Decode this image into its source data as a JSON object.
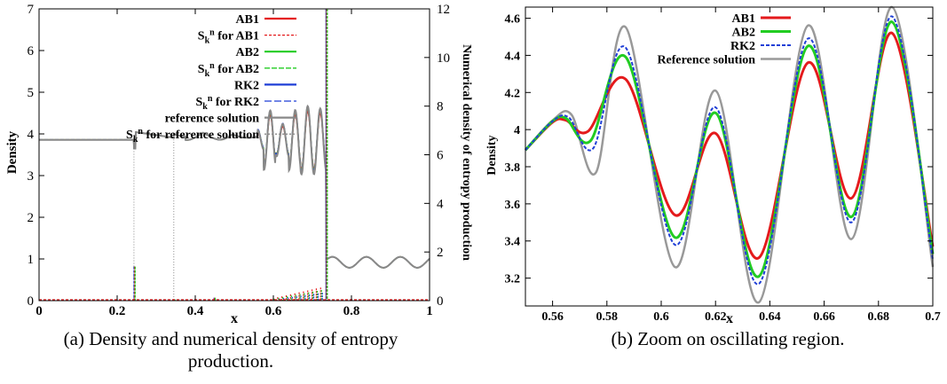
{
  "captions": {
    "left_line1": "(a) Density and numerical density of entropy",
    "left_line2": "production.",
    "right": "(b) Zoom on oscillating region."
  },
  "chart_data": [
    {
      "type": "line",
      "xlabel": "x",
      "ylabel": "Density",
      "y2label": "Numerical density of entropy production",
      "xlim": [
        0,
        1
      ],
      "ylim": [
        0,
        7
      ],
      "y2lim": [
        0,
        12
      ],
      "xticks": [
        "0",
        "0.2",
        "0.4",
        "0.6",
        "0.8",
        "1"
      ],
      "yticks": [
        "0",
        "1",
        "2",
        "3",
        "4",
        "5",
        "6",
        "7"
      ],
      "y2ticks": [
        "0",
        "2",
        "4",
        "6",
        "8",
        "10",
        "12"
      ],
      "grid": false,
      "legend_position": "top-right",
      "legend": [
        {
          "label": "AB1",
          "sup": "",
          "color": "#e41a1c",
          "dash": ""
        },
        {
          "label": "S",
          "sup": "n",
          "sub": "k",
          "rest": " for AB1",
          "color": "#e41a1c",
          "dash": "3,2"
        },
        {
          "label": "AB2",
          "sup": "",
          "color": "#22cc22",
          "dash": ""
        },
        {
          "label": "S",
          "sup": "n",
          "sub": "k",
          "rest": " for AB2",
          "color": "#22cc22",
          "dash": "6,2"
        },
        {
          "label": "RK2",
          "sup": "",
          "color": "#1f3fd6",
          "dash": ""
        },
        {
          "label": "S",
          "sup": "n",
          "sub": "k",
          "rest": " for RK2",
          "color": "#1f3fd6",
          "dash": "8,3"
        },
        {
          "label": "reference solution",
          "sup": "",
          "color": "#888888",
          "dash": ""
        },
        {
          "label": "S",
          "sup": "n",
          "sub": "k",
          "rest": " for reference solution",
          "color": "#888888",
          "dash": "2,2"
        }
      ],
      "density_profile": {
        "pre_shock_level": 3.857,
        "shocks_x": [
          0.243,
          0.345,
          0.735
        ],
        "post_shock_level": 0.92,
        "post_shock_amplitude": 0.13,
        "oscillation_peaks": [
          {
            "x": 0.56,
            "y": 4.05
          },
          {
            "x": 0.59,
            "y": 4.55
          },
          {
            "x": 0.62,
            "y": 4.21
          },
          {
            "x": 0.655,
            "y": 4.56
          },
          {
            "x": 0.685,
            "y": 4.66
          },
          {
            "x": 0.725,
            "y": 4.6
          }
        ]
      },
      "entropy_spikes": [
        {
          "x": 0.243,
          "value": 1.4
        },
        {
          "x": 0.345,
          "value": 0.05
        },
        {
          "x": 0.448,
          "value": 0.12
        },
        {
          "x": 0.735,
          "value": 12
        }
      ]
    },
    {
      "type": "line",
      "xlabel": "x",
      "ylabel": "Density",
      "xlim": [
        0.55,
        0.7
      ],
      "ylim": [
        3.05,
        4.66
      ],
      "xticks": [
        0.56,
        0.58,
        0.6,
        0.62,
        0.64,
        0.66,
        0.68,
        0.7
      ],
      "xtick_labels": [
        "0.56",
        "0.58",
        "0.6",
        "0.62",
        "0.64",
        "0.66",
        "0.68",
        "0.7"
      ],
      "yticks": [
        3.2,
        3.4,
        3.6,
        3.8,
        4,
        4.2,
        4.4,
        4.6
      ],
      "ytick_labels": [
        "3.2",
        "3.4",
        "3.6",
        "3.8",
        "4",
        "4.2",
        "4.4",
        "4.6"
      ],
      "grid": false,
      "legend_position": "top-right",
      "series": [
        {
          "name": "AB1",
          "color": "#e41a1c",
          "dash": "",
          "width": 3,
          "x": [
            0.55,
            0.56,
            0.565,
            0.573,
            0.587,
            0.605,
            0.62,
            0.636,
            0.654,
            0.67,
            0.685,
            0.7
          ],
          "y": [
            3.89,
            4.04,
            4.05,
            3.99,
            4.27,
            3.54,
            3.98,
            3.31,
            4.36,
            3.63,
            4.52,
            3.37
          ]
        },
        {
          "name": "AB2",
          "color": "#22cc22",
          "dash": "",
          "width": 3,
          "x": [
            0.55,
            0.56,
            0.565,
            0.574,
            0.587,
            0.605,
            0.62,
            0.636,
            0.654,
            0.67,
            0.685,
            0.7
          ],
          "y": [
            3.89,
            4.045,
            4.06,
            3.94,
            4.39,
            3.42,
            4.09,
            3.21,
            4.45,
            3.53,
            4.58,
            3.33
          ]
        },
        {
          "name": "RK2",
          "color": "#1f3fd6",
          "dash": "4,2",
          "width": 2,
          "x": [
            0.55,
            0.56,
            0.566,
            0.575,
            0.587,
            0.605,
            0.62,
            0.636,
            0.654,
            0.67,
            0.685,
            0.7
          ],
          "y": [
            3.89,
            4.045,
            4.065,
            3.9,
            4.44,
            3.38,
            4.12,
            3.17,
            4.49,
            3.5,
            4.61,
            3.3
          ]
        },
        {
          "name": "Reference solution",
          "color": "#999999",
          "dash": "",
          "width": 2.5,
          "x": [
            0.55,
            0.56,
            0.567,
            0.576,
            0.587,
            0.605,
            0.62,
            0.636,
            0.654,
            0.67,
            0.685,
            0.7
          ],
          "y": [
            3.89,
            4.05,
            4.08,
            3.77,
            4.55,
            3.26,
            4.21,
            3.07,
            4.56,
            3.41,
            4.66,
            3.26
          ]
        }
      ]
    }
  ]
}
